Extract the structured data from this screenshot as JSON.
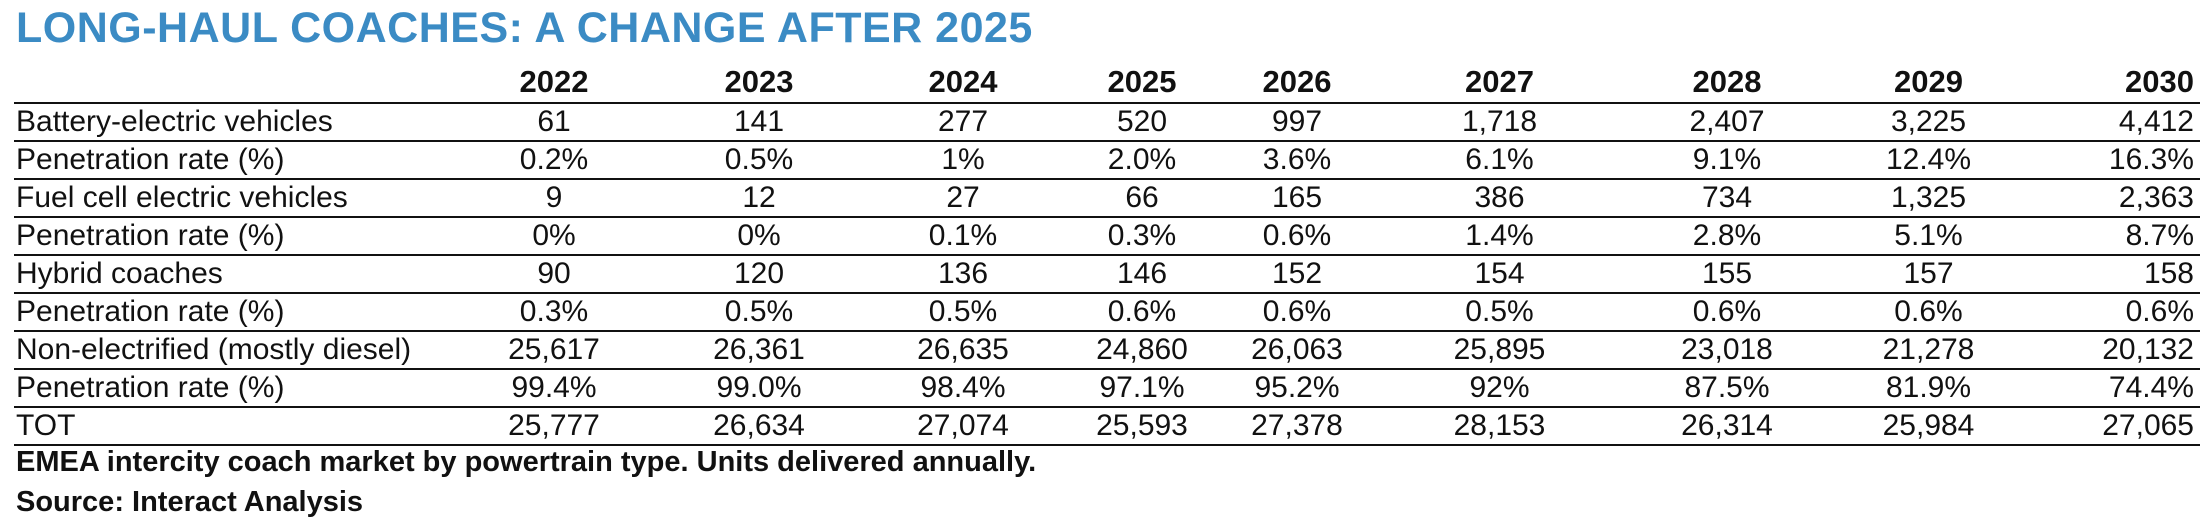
{
  "title": "LONG-HAUL COACHES: A CHANGE AFTER 2025",
  "note": "EMEA intercity coach market by powertrain type. Units delivered annually.",
  "source": "Source: Interact Analysis",
  "colors": {
    "title": "#3b8bc4",
    "text": "#111111",
    "rules": "#111111"
  },
  "chart_data": {
    "type": "table",
    "title": "LONG-HAUL COACHES: A CHANGE AFTER 2025",
    "columns": [
      "2022",
      "2023",
      "2024",
      "2025",
      "2026",
      "2027",
      "2028",
      "2029",
      "2030"
    ],
    "rows": [
      {
        "label": "Battery-electric vehicles",
        "values": [
          "61",
          "141",
          "277",
          "520",
          "997",
          "1,718",
          "2,407",
          "3,225",
          "4,412"
        ]
      },
      {
        "label": "Penetration rate (%)",
        "values": [
          "0.2%",
          "0.5%",
          "1%",
          "2.0%",
          "3.6%",
          "6.1%",
          "9.1%",
          "12.4%",
          "16.3%"
        ]
      },
      {
        "label": "Fuel cell electric vehicles",
        "values": [
          "9",
          "12",
          "27",
          "66",
          "165",
          "386",
          "734",
          "1,325",
          "2,363"
        ]
      },
      {
        "label": "Penetration rate (%)",
        "values": [
          "0%",
          "0%",
          "0.1%",
          "0.3%",
          "0.6%",
          "1.4%",
          "2.8%",
          "5.1%",
          "8.7%"
        ]
      },
      {
        "label": "Hybrid coaches",
        "values": [
          "90",
          "120",
          "136",
          "146",
          "152",
          "154",
          "155",
          "157",
          "158"
        ]
      },
      {
        "label": "Penetration rate (%)",
        "values": [
          "0.3%",
          "0.5%",
          "0.5%",
          "0.6%",
          "0.6%",
          "0.5%",
          "0.6%",
          "0.6%",
          "0.6%"
        ]
      },
      {
        "label": "Non-electrified (mostly diesel)",
        "values": [
          "25,617",
          "26,361",
          "26,635",
          "24,860",
          "26,063",
          "25,895",
          "23,018",
          "21,278",
          "20,132"
        ]
      },
      {
        "label": "Penetration rate (%)",
        "values": [
          "99.4%",
          "99.0%",
          "98.4%",
          "97.1%",
          "95.2%",
          "92%",
          "87.5%",
          "81.9%",
          "74.4%"
        ]
      },
      {
        "label": "TOT",
        "values": [
          "25,777",
          "26,634",
          "27,074",
          "25,593",
          "27,378",
          "28,153",
          "26,314",
          "25,984",
          "27,065"
        ]
      }
    ]
  }
}
